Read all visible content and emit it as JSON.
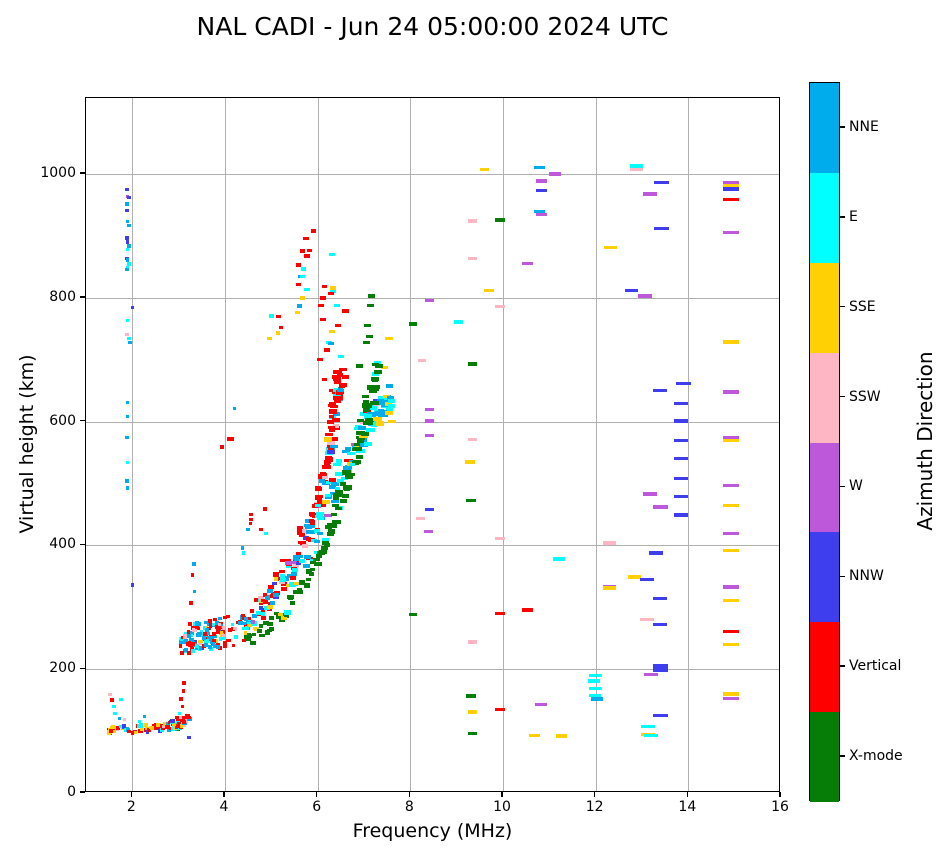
{
  "title": "NAL CADI - Jun 24 05:00:00 2024 UTC",
  "chart_data": {
    "type": "scatter",
    "title": "NAL CADI - Jun 24 05:00:00 2024 UTC",
    "xlabel": "Frequency (MHz)",
    "ylabel": "Virtual height (km)",
    "colorbar_title": "Azimuth Direction",
    "xlim": [
      1,
      16
    ],
    "ylim": [
      0,
      1123
    ],
    "xticks": [
      2,
      4,
      6,
      8,
      10,
      12,
      14,
      16
    ],
    "yticks": [
      0,
      200,
      400,
      600,
      800,
      1000
    ],
    "grid": true,
    "grid_color": "#b0b0b0",
    "directions": [
      {
        "label": "NNE",
        "color": "#00ACEC"
      },
      {
        "label": "E",
        "color": "#00FFFF"
      },
      {
        "label": "SSE",
        "color": "#FFD105"
      },
      {
        "label": "SSW",
        "color": "#FFB6C4"
      },
      {
        "label": "W",
        "color": "#BC58D9"
      },
      {
        "label": "NNW",
        "color": "#3E3EEE"
      },
      {
        "label": "Vertical",
        "color": "#FF0000"
      },
      {
        "label": "X-mode",
        "color": "#067D06"
      }
    ],
    "points": [
      [
        1.88,
        975,
        5
      ],
      [
        1.9,
        964,
        4
      ],
      [
        1.93,
        962,
        5
      ],
      [
        1.88,
        952,
        0
      ],
      [
        1.88,
        941,
        5
      ],
      [
        1.9,
        923,
        0
      ],
      [
        1.93,
        917,
        0
      ],
      [
        1.88,
        897,
        5
      ],
      [
        1.9,
        890,
        5
      ],
      [
        1.93,
        884,
        0
      ],
      [
        1.9,
        878,
        1
      ],
      [
        1.88,
        864,
        5
      ],
      [
        1.9,
        861,
        0
      ],
      [
        1.93,
        855,
        1
      ],
      [
        1.9,
        849,
        1
      ],
      [
        1.88,
        846,
        0
      ],
      [
        2.0,
        784,
        5
      ],
      [
        1.9,
        763,
        1
      ],
      [
        1.88,
        741,
        3
      ],
      [
        1.93,
        734,
        1
      ],
      [
        1.95,
        728,
        0
      ],
      [
        1.9,
        631,
        0
      ],
      [
        1.9,
        608,
        0
      ],
      [
        1.88,
        574,
        0
      ],
      [
        1.9,
        534,
        1
      ],
      [
        1.88,
        504,
        0
      ],
      [
        1.9,
        493,
        0
      ],
      [
        2.0,
        336,
        5
      ],
      [
        1.52,
        159,
        3
      ],
      [
        1.6,
        140,
        1
      ],
      [
        1.63,
        128,
        1
      ],
      [
        1.72,
        120,
        0
      ],
      [
        1.56,
        150,
        6
      ],
      [
        1.76,
        151,
        1
      ],
      [
        2.15,
        116,
        1
      ],
      [
        2.26,
        124,
        0
      ],
      [
        1.83,
        119,
        3
      ],
      [
        3.0,
        103,
        7
      ],
      [
        3.22,
        90,
        5
      ],
      [
        3.05,
        152,
        6
      ],
      [
        3.1,
        165,
        6
      ],
      [
        3.12,
        178,
        6
      ],
      [
        3.08,
        140,
        6
      ],
      [
        3.02,
        128,
        1
      ],
      [
        2.96,
        122,
        6
      ],
      [
        3.0,
        117,
        3
      ],
      [
        4.2,
        621,
        0
      ],
      [
        4.09,
        572,
        6
      ],
      [
        4.15,
        572,
        6
      ],
      [
        3.93,
        559,
        6
      ],
      [
        4.87,
        459,
        6
      ],
      [
        4.56,
        450,
        6
      ],
      [
        4.56,
        442,
        6
      ],
      [
        4.55,
        435,
        6
      ],
      [
        4.49,
        426,
        0
      ],
      [
        4.78,
        426,
        6
      ],
      [
        4.89,
        419,
        1
      ],
      [
        4.38,
        396,
        0
      ],
      [
        4.4,
        388,
        1
      ],
      [
        3.34,
        326,
        0
      ],
      [
        3.27,
        307,
        6
      ],
      [
        3.33,
        370,
        0
      ],
      [
        3.3,
        352,
        6
      ],
      [
        5.91,
        908,
        6
      ],
      [
        5.75,
        896,
        6
      ],
      [
        5.68,
        876,
        6
      ],
      [
        5.83,
        877,
        6
      ],
      [
        5.77,
        868,
        6
      ],
      [
        6.31,
        870,
        1
      ],
      [
        5.59,
        853,
        6
      ],
      [
        5.7,
        847,
        1
      ],
      [
        5.64,
        835,
        0
      ],
      [
        5.68,
        835,
        1
      ],
      [
        5.59,
        822,
        6
      ],
      [
        5.77,
        814,
        1
      ],
      [
        6.15,
        818,
        6
      ],
      [
        6.33,
        816,
        2
      ],
      [
        6.33,
        810,
        1
      ],
      [
        6.29,
        807,
        6
      ],
      [
        5.68,
        800,
        2
      ],
      [
        6.11,
        800,
        6
      ],
      [
        7.16,
        803,
        7
      ],
      [
        6.07,
        788,
        6
      ],
      [
        6.42,
        788,
        1
      ],
      [
        7.14,
        788,
        7
      ],
      [
        5.6,
        787,
        0
      ],
      [
        5.57,
        776,
        2
      ],
      [
        6.6,
        779,
        6
      ],
      [
        5.0,
        771,
        1
      ],
      [
        5.16,
        770,
        6
      ],
      [
        5.21,
        752,
        6
      ],
      [
        6.11,
        765,
        6
      ],
      [
        6.44,
        755,
        6
      ],
      [
        6.31,
        746,
        2
      ],
      [
        5.14,
        743,
        2
      ],
      [
        4.96,
        734,
        2
      ],
      [
        7.08,
        755,
        7
      ],
      [
        7.12,
        738,
        7
      ],
      [
        6.25,
        728,
        1
      ],
      [
        6.28,
        726,
        0
      ],
      [
        7.05,
        728,
        7
      ],
      [
        7.54,
        734,
        2
      ],
      [
        6.2,
        716,
        6
      ],
      [
        6.05,
        700,
        6
      ],
      [
        6.5,
        705,
        1
      ],
      [
        7.3,
        695,
        1
      ],
      [
        7.45,
        688,
        2
      ],
      [
        6.9,
        690,
        7
      ],
      [
        6.6,
        672,
        6
      ],
      [
        6.15,
        668,
        6
      ],
      [
        6.3,
        650,
        6
      ],
      [
        7.5,
        640,
        0
      ],
      [
        7.55,
        620,
        1
      ],
      [
        7.6,
        600,
        2
      ],
      [
        8.41,
        796,
        4
      ],
      [
        8.41,
        620,
        4
      ],
      [
        8.41,
        601,
        4
      ],
      [
        8.41,
        578,
        4
      ],
      [
        8.39,
        423,
        4
      ],
      [
        10.53,
        856,
        4
      ],
      [
        10.83,
        989,
        4
      ],
      [
        10.83,
        935,
        4
      ],
      [
        11.12,
        1000,
        4
      ],
      [
        13.17,
        968,
        4
      ],
      [
        13.06,
        803,
        4
      ],
      [
        13.17,
        483,
        4
      ],
      [
        13.4,
        462,
        4
      ],
      [
        12.3,
        334,
        4
      ],
      [
        13.19,
        191,
        4
      ],
      [
        10.82,
        143,
        4
      ],
      [
        14.93,
        986,
        4
      ],
      [
        14.93,
        906,
        4
      ],
      [
        14.93,
        648,
        4
      ],
      [
        14.93,
        574,
        4
      ],
      [
        14.93,
        497,
        4
      ],
      [
        14.93,
        419,
        4
      ],
      [
        14.93,
        333,
        4
      ],
      [
        14.93,
        153,
        4
      ],
      [
        9.6,
        1007,
        2
      ],
      [
        12.32,
        881,
        2
      ],
      [
        9.69,
        812,
        2
      ],
      [
        9.29,
        535,
        2
      ],
      [
        12.84,
        349,
        2
      ],
      [
        12.3,
        331,
        2
      ],
      [
        9.34,
        131,
        2
      ],
      [
        10.68,
        93,
        2
      ],
      [
        11.26,
        92,
        2
      ],
      [
        13.13,
        95,
        2
      ],
      [
        14.93,
        981,
        2
      ],
      [
        14.93,
        729,
        2
      ],
      [
        14.93,
        570,
        2
      ],
      [
        14.93,
        465,
        2
      ],
      [
        14.93,
        392,
        2
      ],
      [
        14.93,
        311,
        2
      ],
      [
        14.93,
        240,
        2
      ],
      [
        14.93,
        160,
        2
      ],
      [
        9.34,
        924,
        3
      ],
      [
        9.34,
        864,
        3
      ],
      [
        9.34,
        571,
        3
      ],
      [
        9.34,
        244,
        3
      ],
      [
        8.22,
        444,
        3
      ],
      [
        8.25,
        699,
        3
      ],
      [
        9.94,
        786,
        3
      ],
      [
        9.94,
        411,
        3
      ],
      [
        12.3,
        404,
        3
      ],
      [
        13.11,
        280,
        3
      ],
      [
        12.88,
        1008,
        3
      ],
      [
        12.88,
        1013,
        1
      ],
      [
        11.21,
        378,
        1
      ],
      [
        12.0,
        190,
        1
      ],
      [
        11.97,
        181,
        1
      ],
      [
        12.0,
        169,
        1
      ],
      [
        11.98,
        158,
        1
      ],
      [
        12.03,
        152,
        0
      ],
      [
        13.13,
        107,
        1
      ],
      [
        9.03,
        761,
        1
      ],
      [
        13.2,
        93,
        1
      ],
      [
        10.79,
        1011,
        0
      ],
      [
        10.79,
        940,
        0
      ],
      [
        10.83,
        974,
        5
      ],
      [
        13.42,
        986,
        5
      ],
      [
        13.42,
        912,
        5
      ],
      [
        12.77,
        812,
        5
      ],
      [
        13.38,
        650,
        5
      ],
      [
        13.89,
        662,
        5
      ],
      [
        13.84,
        629,
        5
      ],
      [
        13.84,
        601,
        5
      ],
      [
        13.84,
        570,
        5
      ],
      [
        13.84,
        540,
        5
      ],
      [
        13.84,
        508,
        5
      ],
      [
        13.84,
        479,
        5
      ],
      [
        13.84,
        449,
        5
      ],
      [
        13.3,
        388,
        5
      ],
      [
        13.1,
        345,
        5
      ],
      [
        13.38,
        314,
        5
      ],
      [
        13.38,
        272,
        5
      ],
      [
        13.4,
        205,
        5
      ],
      [
        13.4,
        199,
        5
      ],
      [
        13.4,
        125,
        5
      ],
      [
        8.41,
        458,
        5
      ],
      [
        14.93,
        976,
        5
      ],
      [
        14.93,
        959,
        6
      ],
      [
        14.93,
        261,
        6
      ],
      [
        9.94,
        290,
        6
      ],
      [
        10.53,
        296,
        6
      ],
      [
        9.94,
        135,
        6
      ],
      [
        9.93,
        926,
        7
      ],
      [
        9.34,
        693,
        7
      ],
      [
        8.06,
        758,
        7
      ],
      [
        8.06,
        288,
        7
      ],
      [
        9.31,
        473,
        7
      ],
      [
        9.31,
        157,
        7
      ],
      [
        9.34,
        96,
        7
      ]
    ],
    "clusters": [
      {
        "name": "e-region-trace",
        "path": [
          [
            1.5,
            103
          ],
          [
            2.2,
            104
          ],
          [
            2.8,
            108
          ],
          [
            3.05,
            112
          ],
          [
            3.2,
            122
          ]
        ],
        "spread": 7,
        "n": 95,
        "fjitter": 0.06,
        "mix": [
          [
            6,
            0.5
          ],
          [
            2,
            0.14
          ],
          [
            1,
            0.12
          ],
          [
            0,
            0.12
          ],
          [
            3,
            0.06
          ],
          [
            5,
            0.06
          ]
        ]
      },
      {
        "name": "e-region-gold-edge",
        "path": [
          [
            1.5,
            104
          ],
          [
            1.56,
            104
          ]
        ],
        "spread": 9,
        "n": 8,
        "fjitter": 0.03,
        "mix": [
          [
            2,
            0.75
          ],
          [
            6,
            0.25
          ]
        ]
      },
      {
        "name": "f-cluster-low",
        "path": [
          [
            3.1,
            247
          ],
          [
            3.4,
            251
          ],
          [
            3.7,
            255
          ],
          [
            4.0,
            262
          ]
        ],
        "spread": 24,
        "n": 110,
        "fjitter": 0.1,
        "mix": [
          [
            6,
            0.5
          ],
          [
            0,
            0.22
          ],
          [
            1,
            0.17
          ],
          [
            3,
            0.04
          ],
          [
            5,
            0.04
          ],
          [
            2,
            0.03
          ]
        ]
      },
      {
        "name": "f-trace-o-red",
        "path": [
          [
            4.0,
            250
          ],
          [
            4.4,
            275
          ],
          [
            4.8,
            305
          ],
          [
            5.2,
            345
          ],
          [
            5.6,
            395
          ],
          [
            5.9,
            440
          ],
          [
            6.1,
            490
          ],
          [
            6.25,
            545
          ],
          [
            6.35,
            600
          ],
          [
            6.45,
            650
          ],
          [
            6.5,
            678
          ]
        ],
        "spread": 20,
        "n": 150,
        "fjitter": 0.09,
        "mix": [
          [
            6,
            0.62
          ],
          [
            0,
            0.13
          ],
          [
            1,
            0.1
          ],
          [
            3,
            0.05
          ],
          [
            2,
            0.04
          ],
          [
            5,
            0.03
          ],
          [
            4,
            0.03
          ]
        ]
      },
      {
        "name": "f-trace-o-blue",
        "path": [
          [
            4.3,
            260
          ],
          [
            4.8,
            295
          ],
          [
            5.3,
            340
          ],
          [
            5.8,
            400
          ],
          [
            6.2,
            465
          ],
          [
            6.6,
            530
          ],
          [
            6.95,
            575
          ],
          [
            7.2,
            610
          ],
          [
            7.45,
            635
          ]
        ],
        "spread": 20,
        "n": 120,
        "fjitter": 0.09,
        "mix": [
          [
            0,
            0.34
          ],
          [
            1,
            0.34
          ],
          [
            2,
            0.15
          ],
          [
            6,
            0.07
          ],
          [
            3,
            0.04
          ],
          [
            5,
            0.03
          ],
          [
            4,
            0.03
          ]
        ]
      },
      {
        "name": "f-trace-x-green",
        "path": [
          [
            4.45,
            240
          ],
          [
            4.9,
            265
          ],
          [
            5.35,
            300
          ],
          [
            5.8,
            350
          ],
          [
            6.1,
            390
          ],
          [
            6.35,
            440
          ],
          [
            6.6,
            495
          ],
          [
            6.8,
            545
          ],
          [
            7.0,
            595
          ],
          [
            7.15,
            645
          ],
          [
            7.3,
            688
          ]
        ],
        "spread": 13,
        "n": 110,
        "fjitter": 0.08,
        "mix": [
          [
            7,
            0.9
          ],
          [
            1,
            0.05
          ],
          [
            2,
            0.05
          ]
        ]
      },
      {
        "name": "f-trace-tip",
        "path": [
          [
            7.3,
            600
          ],
          [
            7.5,
            628
          ],
          [
            7.6,
            645
          ]
        ],
        "spread": 16,
        "n": 14,
        "fjitter": 0.06,
        "mix": [
          [
            1,
            0.4
          ],
          [
            2,
            0.35
          ],
          [
            0,
            0.25
          ]
        ]
      }
    ]
  }
}
